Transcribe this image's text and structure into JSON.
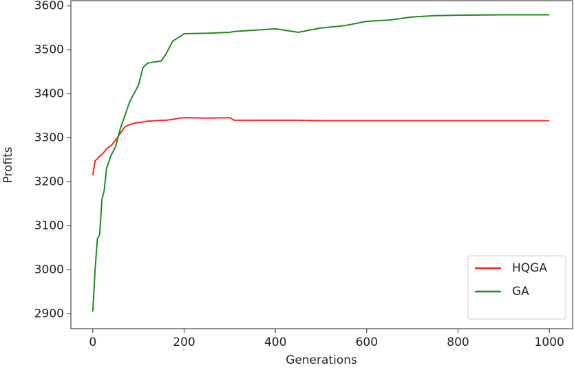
{
  "chart_data": {
    "type": "line",
    "xlabel": "Generations",
    "ylabel": "Profits",
    "x": [
      0,
      5,
      10,
      15,
      20,
      25,
      30,
      40,
      50,
      60,
      70,
      80,
      90,
      100,
      110,
      120,
      150,
      160,
      175,
      190,
      200,
      250,
      300,
      310,
      400,
      450,
      500,
      550,
      600,
      650,
      700,
      750,
      800,
      900,
      1000
    ],
    "series": [
      {
        "name": "HQGA",
        "color": "#ff2020",
        "values": [
          3215,
          3248,
          3252,
          3258,
          3262,
          3268,
          3275,
          3282,
          3295,
          3310,
          3325,
          3330,
          3333,
          3335,
          3336,
          3338,
          3340,
          3340,
          3342,
          3345,
          3346,
          3345,
          3346,
          3340,
          3340,
          3340,
          3339,
          3339,
          3339,
          3339,
          3339,
          3339,
          3339,
          3339,
          3339
        ]
      },
      {
        "name": "GA",
        "color": "#1e8a1e",
        "values": [
          2905,
          3000,
          3070,
          3080,
          3160,
          3180,
          3230,
          3260,
          3280,
          3320,
          3350,
          3380,
          3400,
          3420,
          3460,
          3470,
          3475,
          3490,
          3520,
          3530,
          3537,
          3538,
          3540,
          3542,
          3548,
          3540,
          3550,
          3555,
          3565,
          3568,
          3575,
          3578,
          3579,
          3580,
          3580
        ]
      }
    ],
    "xlim": [
      -48,
      1051
    ],
    "ylim": [
      2866,
      3612
    ],
    "xticks": [
      0,
      200,
      400,
      600,
      800,
      1000
    ],
    "yticks": [
      2900,
      3000,
      3100,
      3200,
      3300,
      3400,
      3500,
      3600
    ],
    "legend": "lower right"
  }
}
